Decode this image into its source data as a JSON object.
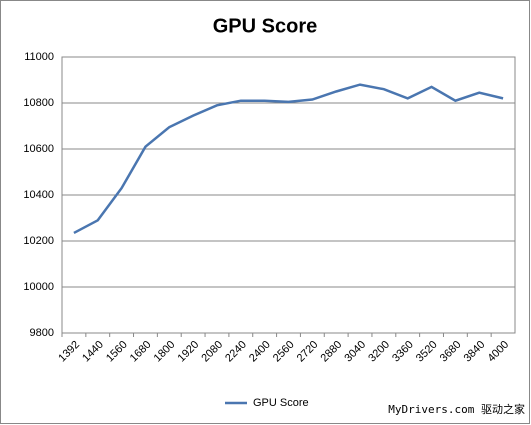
{
  "chart_data": {
    "type": "line",
    "title": "GPU Score",
    "categories": [
      "1392",
      "1440",
      "1560",
      "1680",
      "1800",
      "1920",
      "2080",
      "2240",
      "2400",
      "2560",
      "2720",
      "2880",
      "3040",
      "3200",
      "3360",
      "3520",
      "3680",
      "3840",
      "4000"
    ],
    "series": [
      {
        "name": "GPU Score",
        "color": "#4a76b0",
        "values": [
          10235,
          10290,
          10430,
          10610,
          10695,
          10745,
          10790,
          10810,
          10810,
          10805,
          10815,
          10850,
          10880,
          10860,
          10820,
          10870,
          10810,
          10845,
          10820
        ]
      }
    ],
    "ylim": [
      9800,
      11000
    ],
    "yticks": [
      9800,
      10000,
      10200,
      10400,
      10600,
      10800,
      11000
    ],
    "grid": true,
    "legend": "bottom",
    "watermark": "MyDrivers.com 驱动之家"
  }
}
